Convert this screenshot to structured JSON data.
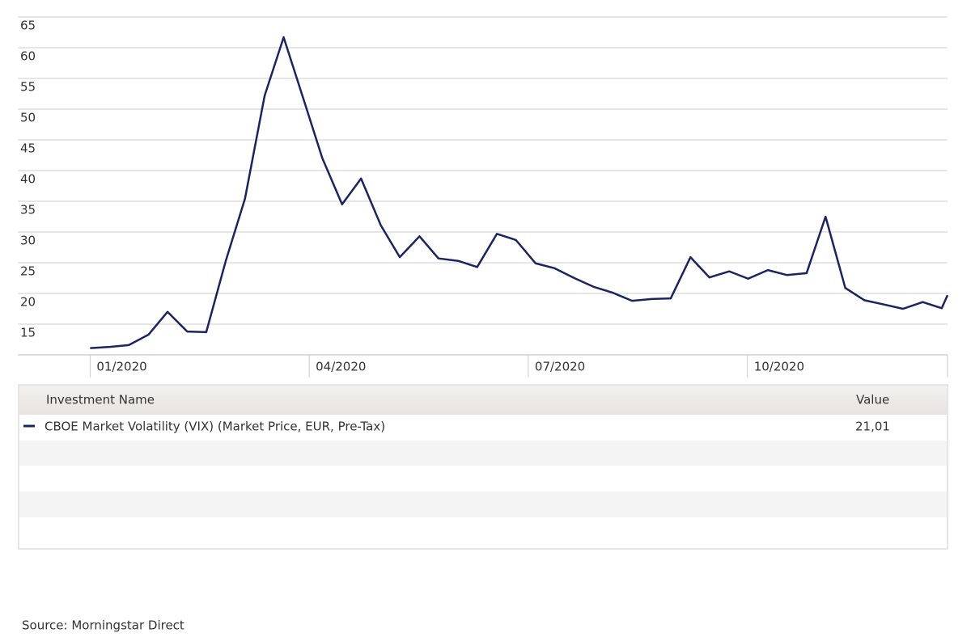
{
  "chart_data": {
    "type": "line",
    "x": [
      0,
      0.27,
      0.53,
      0.8,
      1.06,
      1.33,
      1.59,
      1.86,
      2.12,
      2.39,
      2.65,
      2.92,
      3.18,
      3.45,
      3.71,
      3.98,
      4.24,
      4.51,
      4.77,
      5.04,
      5.3,
      5.57,
      5.83,
      6.1,
      6.36,
      6.63,
      6.89,
      7.16,
      7.42,
      7.69,
      7.95,
      8.22,
      8.48,
      8.75,
      9.01,
      9.28,
      9.54,
      9.81,
      10.07,
      10.34,
      10.6,
      10.87,
      11.13,
      11.4,
      11.66,
      11.74
    ],
    "series": [
      {
        "name": "CBOE Market Volatility (VIX) (Market Price, EUR, Pre-Tax)",
        "color": "#1b2463",
        "values": [
          11.1,
          11.3,
          11.6,
          13.3,
          17.0,
          13.8,
          13.7,
          25.4,
          35.4,
          52.2,
          61.7,
          51.7,
          42.0,
          34.5,
          38.7,
          31.1,
          25.9,
          29.3,
          25.7,
          25.3,
          24.3,
          29.7,
          28.7,
          24.9,
          24.1,
          22.5,
          21.1,
          20.1,
          18.8,
          19.1,
          19.2,
          25.9,
          22.6,
          23.6,
          22.4,
          23.8,
          23.0,
          23.3,
          32.5,
          20.9,
          18.9,
          18.2,
          17.5,
          18.6,
          17.6,
          19.7
        ]
      }
    ],
    "xlim": [
      -0.99,
      11.74
    ],
    "xticks": [
      {
        "value": 0,
        "label": "01/2020"
      },
      {
        "value": 3,
        "label": "04/2020"
      },
      {
        "value": 6,
        "label": "07/2020"
      },
      {
        "value": 9,
        "label": "10/2020"
      }
    ],
    "ylim": [
      10,
      65
    ],
    "yticks": [
      15,
      20,
      25,
      30,
      35,
      40,
      45,
      50,
      55,
      60,
      65
    ],
    "grid": true
  },
  "table": {
    "columns": [
      "Investment Name",
      "Value"
    ],
    "value": "21,01"
  },
  "source": "Source: Morningstar Direct"
}
